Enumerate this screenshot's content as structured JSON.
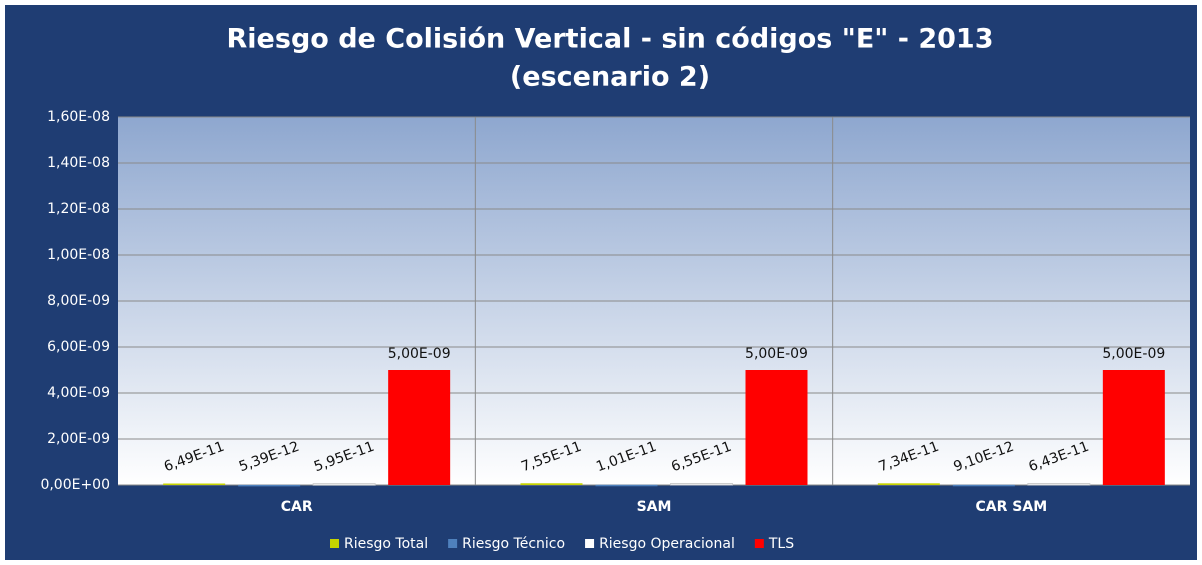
{
  "chart_data": {
    "type": "bar",
    "title": [
      "Riesgo de Colisión Vertical - sin códigos \"E\" - 2013",
      "(escenario 2)"
    ],
    "categories": [
      "CAR",
      "SAM",
      "CAR SAM"
    ],
    "series": [
      {
        "name": "Riesgo Total",
        "color": "#c5d300",
        "values": [
          6.49e-11,
          7.55e-11,
          7.34e-11
        ],
        "value_labels": [
          "6,49E-11",
          "7,55E-11",
          "7,34E-11"
        ]
      },
      {
        "name": "Riesgo Técnico",
        "color": "#4f81bd",
        "values": [
          5.39e-12,
          1.01e-11,
          9.1e-12
        ],
        "value_labels": [
          "5,39E-12",
          "1,01E-11",
          "9,10E-12"
        ]
      },
      {
        "name": "Riesgo Operacional",
        "color": "#ffffff",
        "values": [
          5.95e-11,
          6.55e-11,
          6.43e-11
        ],
        "value_labels": [
          "5,95E-11",
          "6,55E-11",
          "6,43E-11"
        ]
      },
      {
        "name": "TLS",
        "color": "#ff0000",
        "values": [
          5e-09,
          5e-09,
          5e-09
        ],
        "value_labels": [
          "5,00E-09",
          "5,00E-09",
          "5,00E-09"
        ]
      }
    ],
    "ylim": [
      0,
      1.6e-08
    ],
    "yticks": [
      {
        "value": 0,
        "label": "0,00E+00"
      },
      {
        "value": 2e-09,
        "label": "2,00E-09"
      },
      {
        "value": 4e-09,
        "label": "4,00E-09"
      },
      {
        "value": 6e-09,
        "label": "6,00E-09"
      },
      {
        "value": 8e-09,
        "label": "8,00E-09"
      },
      {
        "value": 1e-08,
        "label": "1,00E-08"
      },
      {
        "value": 1.2e-08,
        "label": "1,20E-08"
      },
      {
        "value": 1.4e-08,
        "label": "1,40E-08"
      },
      {
        "value": 1.6e-08,
        "label": "1,60E-08"
      }
    ],
    "grid": true,
    "legend": "bottom"
  }
}
